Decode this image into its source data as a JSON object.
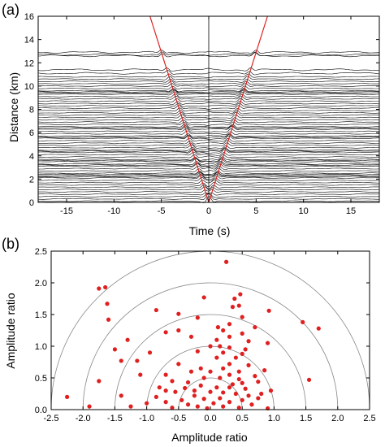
{
  "chart_data": [
    {
      "panel_label": "(a)",
      "type": "line",
      "xlabel": "Time (s)",
      "ylabel": "Distance (km)",
      "xlim": [
        -18,
        18
      ],
      "ylim": [
        0,
        16
      ],
      "xticks": [
        -15,
        -10,
        -5,
        0,
        5,
        10,
        15
      ],
      "yticks": [
        0,
        2,
        4,
        6,
        8,
        10,
        12,
        14,
        16
      ],
      "grid": false,
      "series": [
        {
          "kind": "stacked-waveforms",
          "color": "#000000",
          "offsets_km": [
            0.1,
            0.3,
            0.5,
            0.7,
            0.9,
            1.1,
            1.3,
            1.5,
            1.7,
            1.9,
            2.1,
            2.2,
            2.3,
            2.4,
            2.5,
            2.7,
            2.9,
            3.1,
            3.2,
            3.3,
            3.5,
            3.6,
            3.7,
            3.9,
            4.1,
            4.3,
            4.4,
            4.5,
            4.7,
            4.9,
            5.1,
            5.3,
            5.5,
            5.6,
            5.7,
            5.9,
            6.1,
            6.3,
            6.4,
            6.5,
            6.7,
            6.9,
            7.1,
            7.3,
            7.5,
            7.7,
            7.9,
            8.1,
            8.3,
            8.5,
            8.7,
            8.9,
            9.1,
            9.3,
            9.4,
            9.5,
            9.6,
            9.8,
            10.0,
            10.2,
            10.4,
            10.6,
            10.8,
            11.1,
            11.4,
            12.6,
            12.7,
            12.9
          ]
        },
        {
          "kind": "moveout-lines",
          "color": "#e02020",
          "points": [
            [
              0,
              0
            ],
            [
              -6.2,
              16
            ],
            [
              0,
              0
            ],
            [
              6.2,
              16
            ]
          ]
        },
        {
          "kind": "zero-line",
          "color": "#000000",
          "points": [
            [
              0,
              0
            ],
            [
              0,
              16
            ]
          ]
        }
      ]
    },
    {
      "panel_label": "(b)",
      "type": "scatter",
      "xlabel": "Amplitude ratio",
      "ylabel": "Amplitude ratio",
      "xlim": [
        -2.5,
        2.5
      ],
      "ylim": [
        0,
        2.5
      ],
      "xticks": [
        -2.5,
        -2.0,
        -1.5,
        -1.0,
        -0.5,
        0.0,
        0.5,
        1.0,
        1.5,
        2.0,
        2.5
      ],
      "yticks": [
        0.0,
        0.5,
        1.0,
        1.5,
        2.0,
        2.5
      ],
      "grid": false,
      "circle_radii": [
        0.5,
        1.0,
        1.5,
        2.0,
        2.5
      ],
      "circle_color": "#888888",
      "point_color": "#e02020",
      "points": [
        [
          0.25,
          2.33
        ],
        [
          -1.75,
          1.91
        ],
        [
          -1.65,
          1.93
        ],
        [
          0.47,
          1.82
        ],
        [
          0.38,
          1.75
        ],
        [
          0.45,
          1.64
        ],
        [
          0.35,
          1.62
        ],
        [
          -1.62,
          1.67
        ],
        [
          -0.1,
          1.77
        ],
        [
          -0.85,
          1.57
        ],
        [
          -1.6,
          1.42
        ],
        [
          -0.5,
          1.51
        ],
        [
          0.92,
          1.56
        ],
        [
          -0.2,
          1.45
        ],
        [
          0.5,
          1.46
        ],
        [
          0.3,
          1.35
        ],
        [
          1.45,
          1.38
        ],
        [
          1.7,
          1.28
        ],
        [
          0.12,
          1.3
        ],
        [
          0.7,
          1.3
        ],
        [
          -0.5,
          1.25
        ],
        [
          0.2,
          1.25
        ],
        [
          -0.7,
          1.22
        ],
        [
          0.5,
          1.2
        ],
        [
          -1.3,
          1.1
        ],
        [
          0.3,
          1.15
        ],
        [
          -0.3,
          1.15
        ],
        [
          0.6,
          1.08
        ],
        [
          0.1,
          1.1
        ],
        [
          0.9,
          1.05
        ],
        [
          0.0,
          1.0
        ],
        [
          0.15,
          1.0
        ],
        [
          0.3,
          0.98
        ],
        [
          -1.5,
          0.95
        ],
        [
          -0.95,
          0.9
        ],
        [
          0.5,
          0.88
        ],
        [
          0.2,
          0.9
        ],
        [
          -0.2,
          0.92
        ],
        [
          0.4,
          0.82
        ],
        [
          0.1,
          0.82
        ],
        [
          -1.4,
          0.77
        ],
        [
          -1.15,
          0.77
        ],
        [
          0.3,
          0.72
        ],
        [
          0.6,
          0.7
        ],
        [
          -0.5,
          0.72
        ],
        [
          0.2,
          0.65
        ],
        [
          0.85,
          0.62
        ],
        [
          0.45,
          0.6
        ],
        [
          -0.3,
          0.6
        ],
        [
          0.0,
          0.6
        ],
        [
          -1.1,
          0.55
        ],
        [
          -0.7,
          0.55
        ],
        [
          0.3,
          0.55
        ],
        [
          0.7,
          0.53
        ],
        [
          -0.1,
          0.5
        ],
        [
          0.15,
          0.5
        ],
        [
          0.45,
          0.48
        ],
        [
          1.55,
          0.47
        ],
        [
          -1.75,
          0.45
        ],
        [
          0.75,
          0.44
        ],
        [
          -0.6,
          0.45
        ],
        [
          -0.35,
          0.43
        ],
        [
          0.5,
          0.42
        ],
        [
          -0.15,
          0.38
        ],
        [
          0.3,
          0.35
        ],
        [
          0.1,
          0.35
        ],
        [
          -0.4,
          0.34
        ],
        [
          0.55,
          0.33
        ],
        [
          -0.7,
          0.3
        ],
        [
          0.95,
          0.3
        ],
        [
          -0.55,
          0.28
        ],
        [
          0.0,
          0.28
        ],
        [
          0.2,
          0.27
        ],
        [
          0.4,
          0.25
        ],
        [
          -1.4,
          0.22
        ],
        [
          -2.25,
          0.2
        ],
        [
          -0.25,
          0.22
        ],
        [
          0.6,
          0.22
        ],
        [
          -0.85,
          0.2
        ],
        [
          0.75,
          0.18
        ],
        [
          0.15,
          0.18
        ],
        [
          -0.1,
          0.17
        ],
        [
          -0.45,
          0.15
        ],
        [
          0.5,
          0.15
        ],
        [
          -0.7,
          0.12
        ],
        [
          0.3,
          0.12
        ],
        [
          -1.0,
          0.1
        ],
        [
          0.05,
          0.1
        ],
        [
          -0.35,
          0.08
        ],
        [
          0.65,
          0.08
        ],
        [
          -1.9,
          0.05
        ],
        [
          -1.25,
          0.05
        ],
        [
          -0.2,
          0.05
        ],
        [
          0.2,
          0.05
        ],
        [
          -0.6,
          0.03
        ],
        [
          0.45,
          0.03
        ],
        [
          -0.05,
          0.02
        ],
        [
          0.9,
          0.02
        ],
        [
          -0.8,
          0.35
        ],
        [
          -0.25,
          0.3
        ],
        [
          0.35,
          0.4
        ],
        [
          -0.15,
          0.65
        ],
        [
          0.55,
          0.95
        ],
        [
          0.8,
          0.25
        ]
      ]
    }
  ]
}
